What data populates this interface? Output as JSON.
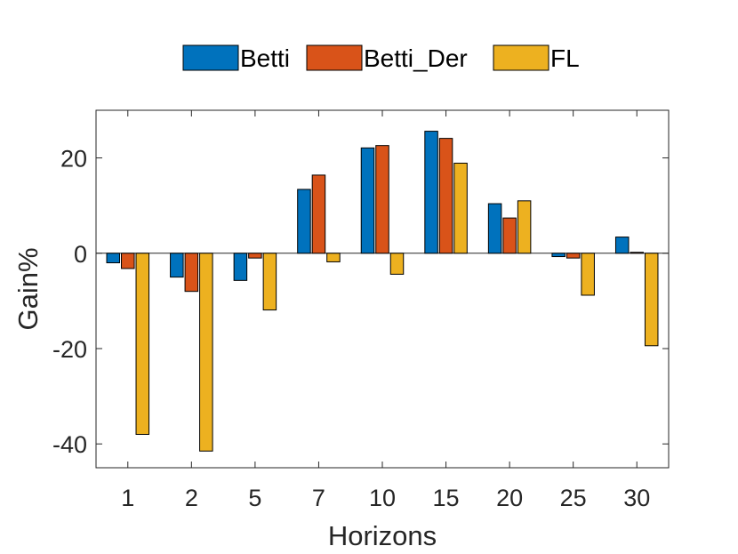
{
  "chart_data": {
    "type": "bar",
    "xlabel": "Horizons",
    "ylabel": "Gain%",
    "categories": [
      "1",
      "2",
      "5",
      "7",
      "10",
      "15",
      "20",
      "25",
      "30"
    ],
    "series": [
      {
        "name": "Betti",
        "color": "#0072BD",
        "values": [
          -2.0,
          -5.0,
          -5.7,
          13.4,
          22.1,
          25.6,
          10.4,
          -0.7,
          3.4
        ]
      },
      {
        "name": "Betti_Der",
        "color": "#D95319",
        "values": [
          -3.2,
          -8.0,
          -1.0,
          16.4,
          22.6,
          24.1,
          7.4,
          -1.0,
          0.2
        ]
      },
      {
        "name": "FL",
        "color": "#EDB120",
        "values": [
          -38.0,
          -41.5,
          -11.9,
          -1.8,
          -4.4,
          18.9,
          11.0,
          -8.8,
          -19.4
        ]
      }
    ],
    "ylim": [
      -45,
      30
    ],
    "yticks": [
      -40,
      -20,
      0,
      20
    ],
    "grid": false,
    "legend_position": "top, horizontal"
  }
}
